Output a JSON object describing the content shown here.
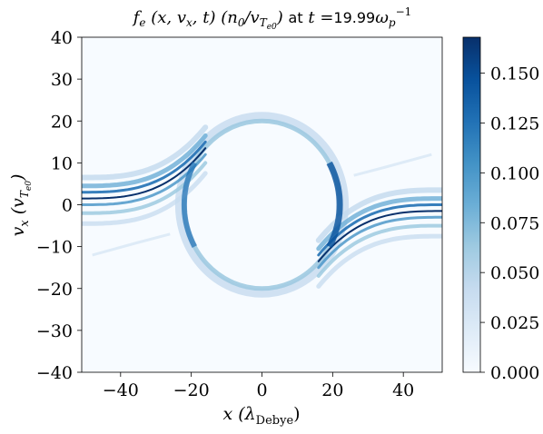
{
  "chart_data": {
    "type": "heatmap",
    "title": {
      "math_prefix": "f",
      "math_sub": "e",
      "math_args": " (x, v",
      "math_args_sub": "x",
      "math_args_end": ", t) (n",
      "norm_sub": "0",
      "norm_mid": "/v",
      "norm_sub2": "T",
      "norm_sub3": "e0",
      "norm_end": ")",
      "at_text": "at",
      "t_eq": "t =",
      "time_value": "19.99",
      "omega": "ω",
      "omega_sub": "p",
      "omega_sup": "−1"
    },
    "xlabel": {
      "main": "x (λ",
      "sub": "Debye",
      "end": ")"
    },
    "ylabel": {
      "main": "v",
      "sub": "x",
      "mid": " (v",
      "sub2": "T",
      "sub3": "e0",
      "end": ")"
    },
    "xlim": [
      -51,
      51
    ],
    "ylim": [
      -40,
      40
    ],
    "xticks": [
      -40,
      -20,
      0,
      20,
      40
    ],
    "xtick_labels": [
      "−40",
      "−20",
      "0",
      "20",
      "40"
    ],
    "yticks": [
      -40,
      -30,
      -20,
      -10,
      0,
      10,
      20,
      30,
      40
    ],
    "ytick_labels": [
      "−40",
      "−30",
      "−20",
      "−10",
      "0",
      "10",
      "20",
      "30",
      "40"
    ],
    "colormap": "Blues",
    "colorbar": {
      "range": [
        0.0,
        0.168
      ],
      "ticks": [
        0.0,
        0.025,
        0.05,
        0.075,
        0.1,
        0.125,
        0.15
      ],
      "tick_labels": [
        "0.000",
        "0.025",
        "0.050",
        "0.075",
        "0.100",
        "0.125",
        "0.150"
      ]
    },
    "features": {
      "separatrix_center": [
        0,
        0
      ],
      "separatrix_half_width_x": 22,
      "separatrix_half_height_v": 20,
      "streams": [
        {
          "side": "left",
          "v_at_edge": 1.5,
          "trend": "rising toward separatrix"
        },
        {
          "side": "right",
          "v_at_edge": -1.5,
          "trend": "falling toward separatrix"
        }
      ],
      "peak_value_approx": 0.168
    }
  }
}
